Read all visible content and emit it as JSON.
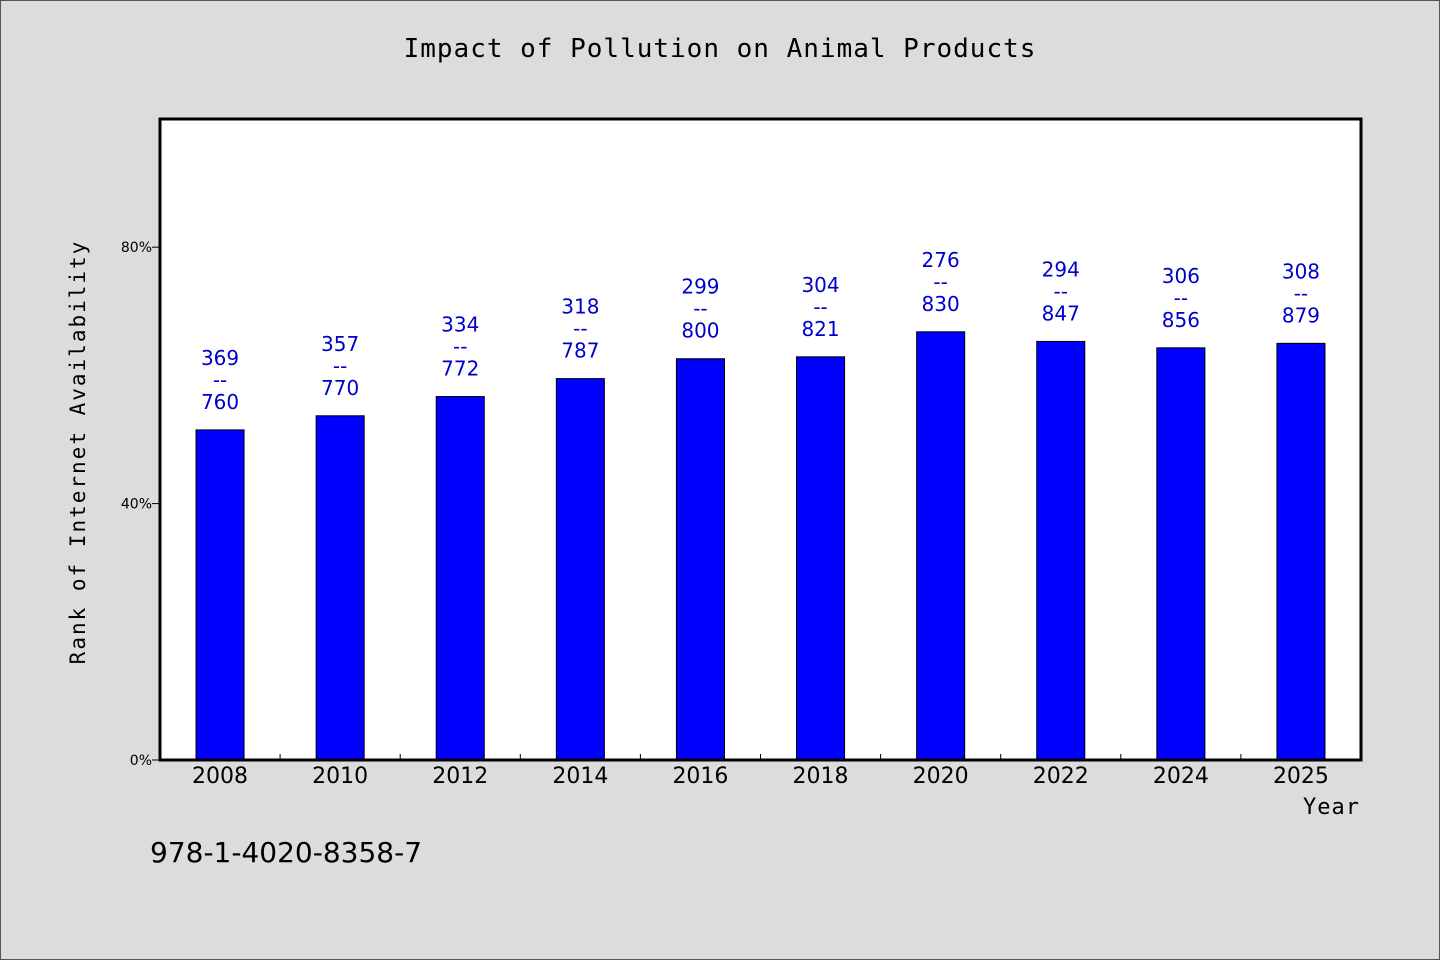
{
  "chart_data": {
    "type": "bar",
    "title": "Impact of Pollution on Animal Products",
    "xlabel": "Year",
    "ylabel": "Rank of Internet Availability",
    "categories": [
      "2008",
      "2010",
      "2012",
      "2014",
      "2016",
      "2018",
      "2020",
      "2022",
      "2024",
      "2025"
    ],
    "values": [
      51.5,
      53.7,
      56.7,
      59.5,
      62.6,
      62.9,
      66.8,
      65.3,
      64.3,
      65.0
    ],
    "ylim": [
      0,
      100
    ],
    "yticks": [
      0,
      40,
      80
    ],
    "ytick_labels": [
      "0%",
      "40%",
      "80%"
    ],
    "data_labels": [
      [
        "369",
        "--",
        "760"
      ],
      [
        "357",
        "--",
        "770"
      ],
      [
        "334",
        "--",
        "772"
      ],
      [
        "318",
        "--",
        "787"
      ],
      [
        "299",
        "--",
        "800"
      ],
      [
        "304",
        "--",
        "821"
      ],
      [
        "276",
        "--",
        "830"
      ],
      [
        "294",
        "--",
        "847"
      ],
      [
        "306",
        "--",
        "856"
      ],
      [
        "308",
        "--",
        "879"
      ]
    ],
    "bar_color": "#0000ff",
    "label_color": "#0000cc",
    "grid": false
  },
  "footer": {
    "code": "978-1-4020-8358-7"
  }
}
